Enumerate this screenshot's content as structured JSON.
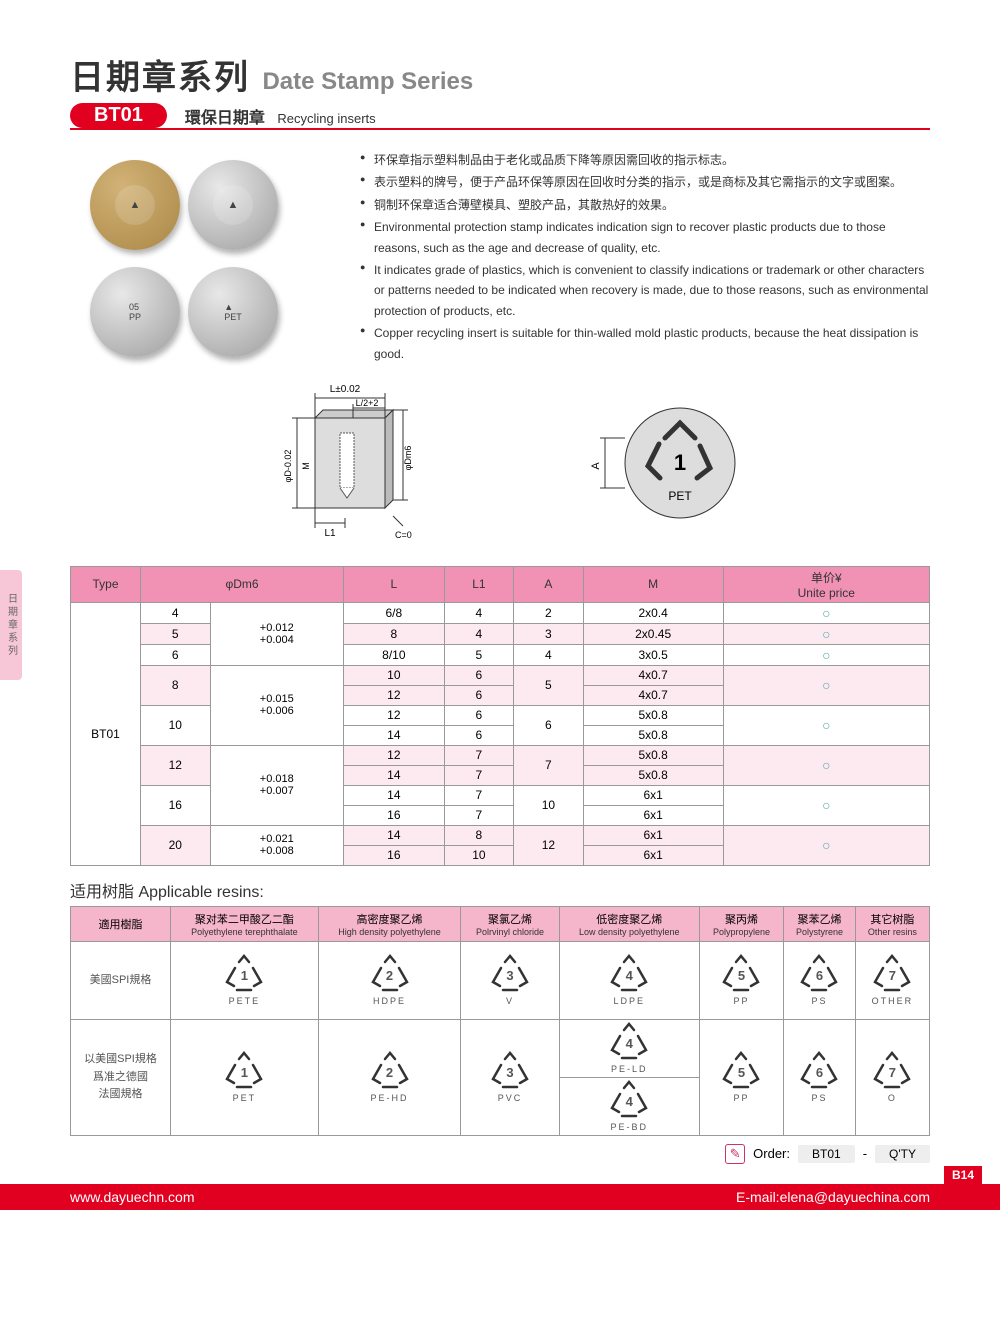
{
  "header": {
    "title_cn": "日期章系列",
    "title_en": "Date Stamp Series",
    "badge": "BT01",
    "sub_cn": "環保日期章",
    "sub_en": "Recycling inserts"
  },
  "side_tab": "日期章系列",
  "bullets": [
    "环保章指示塑料制品由于老化或品质下降等原因需回收的指示标志。",
    "表示塑料的牌号，便于产品环保等原因在回收时分类的指示，或是商标及其它需指示的文字或图案。",
    "铜制环保章适合薄壁模具、塑胶产品，其散热好的效果。",
    "Environmental protection stamp indicates indication sign to recover plastic products due to those reasons, such as the age and decrease of quality, etc.",
    "It indicates grade of plastics, which is convenient to classify indications or trademark or other characters or patterns needed to be indicated when recovery is made, due to those reasons, such as environmental protection of products, etc.",
    "Copper recycling insert is suitable for thin-walled mold plastic products, because the heat dissipation is good."
  ],
  "diagram_labels": {
    "L": "L±0.02",
    "Lhalf": "L/2+2",
    "D": "φD-0.02",
    "M": "M",
    "Dm6": "φDm6",
    "L1": "L1",
    "C": "C=0",
    "A": "A",
    "PET": "PET"
  },
  "spec_table": {
    "headers": [
      "Type",
      "φDm6",
      "",
      "L",
      "L1",
      "A",
      "M",
      "单价¥\nUnite price"
    ],
    "type": "BT01",
    "rows": [
      {
        "dm6": "4",
        "tol": "+0.012\n+0.004",
        "L": "6/8",
        "L1": "4",
        "A": "2",
        "M": "2x0.4",
        "pink": false,
        "tol_span": 3
      },
      {
        "dm6": "5",
        "tol": "",
        "L": "8",
        "L1": "4",
        "A": "3",
        "M": "2x0.45",
        "pink": true
      },
      {
        "dm6": "6",
        "tol": "",
        "L": "8/10",
        "L1": "5",
        "A": "4",
        "M": "3x0.5",
        "pink": false
      },
      {
        "dm6": "8",
        "tol": "+0.015\n+0.006",
        "L": "10",
        "L1": "6",
        "A": "5",
        "M": "4x0.7",
        "pink": true,
        "tol_span": 4,
        "sub": [
          {
            "L": "12",
            "L1": "6",
            "M": "4x0.7"
          }
        ],
        "a_span": 2
      },
      {
        "dm6": "10",
        "tol": "",
        "L": "12",
        "L1": "6",
        "A": "6",
        "M": "5x0.8",
        "pink": false,
        "sub": [
          {
            "L": "14",
            "L1": "6",
            "M": "5x0.8"
          }
        ],
        "a_span": 2
      },
      {
        "dm6": "12",
        "tol": "+0.018\n+0.007",
        "L": "12",
        "L1": "7",
        "A": "7",
        "M": "5x0.8",
        "pink": true,
        "tol_span": 4,
        "sub": [
          {
            "L": "14",
            "L1": "7",
            "M": "5x0.8"
          }
        ],
        "a_span": 2
      },
      {
        "dm6": "16",
        "tol": "",
        "L": "14",
        "L1": "7",
        "A": "10",
        "M": "6x1",
        "pink": false,
        "sub": [
          {
            "L": "16",
            "L1": "7",
            "M": "6x1"
          }
        ],
        "a_span": 2
      },
      {
        "dm6": "20",
        "tol": "+0.021\n+0.008",
        "L": "14",
        "L1": "8",
        "A": "12",
        "M": "6x1",
        "pink": true,
        "tol_span": 2,
        "sub": [
          {
            "L": "16",
            "L1": "10",
            "M": "6x1"
          }
        ],
        "a_span": 2
      }
    ]
  },
  "resins_title": "适用树脂 Applicable resins:",
  "resin_table": {
    "col_header": "適用樹脂",
    "cols": [
      {
        "cn": "聚对苯二甲酸乙二酯",
        "en": "Polyethylene terephthalate"
      },
      {
        "cn": "高密度聚乙烯",
        "en": "High density polyethylene"
      },
      {
        "cn": "聚氯乙烯",
        "en": "Polrvinyl chloride"
      },
      {
        "cn": "低密度聚乙烯",
        "en": "Low density polyethylene"
      },
      {
        "cn": "聚丙烯",
        "en": "Polypropylene"
      },
      {
        "cn": "聚苯乙烯",
        "en": "Polystyrene"
      },
      {
        "cn": "其它树脂",
        "en": "Other resins"
      }
    ],
    "rows": [
      {
        "label": "美國SPI規格",
        "syms": [
          {
            "n": "1",
            "l": "PETE"
          },
          {
            "n": "2",
            "l": "HDPE"
          },
          {
            "n": "3",
            "l": "V"
          },
          {
            "n": "4",
            "l": "LDPE"
          },
          {
            "n": "5",
            "l": "PP"
          },
          {
            "n": "6",
            "l": "PS"
          },
          {
            "n": "7",
            "l": "OTHER"
          }
        ]
      },
      {
        "label": "以美國SPI規格\n爲准之德國\n法國規格",
        "syms": [
          {
            "n": "1",
            "l": "PET"
          },
          {
            "n": "2",
            "l": "PE-HD"
          },
          {
            "n": "3",
            "l": "PVC"
          },
          {
            "n": "4",
            "l": "PE-LD",
            "extra": {
              "n": "4",
              "l": "PE-BD"
            }
          },
          {
            "n": "5",
            "l": "PP"
          },
          {
            "n": "6",
            "l": "PS"
          },
          {
            "n": "7",
            "l": "O"
          }
        ]
      }
    ]
  },
  "order": {
    "label": "Order:",
    "code": "BT01",
    "dash": "-",
    "qty": "Q'TY"
  },
  "footer": {
    "url": "www.dayuechn.com",
    "email": "E-mail:elena@dayuechina.com",
    "page": "B14"
  }
}
